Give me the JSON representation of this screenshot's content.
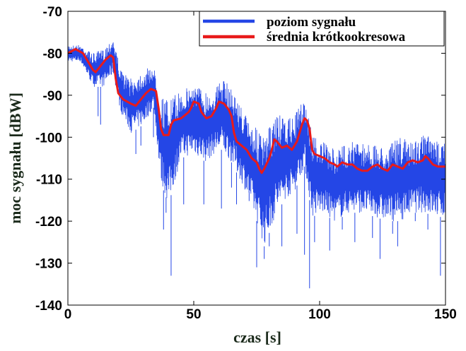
{
  "chart_data": {
    "type": "line",
    "title": "",
    "xlabel": "czas  [s]",
    "ylabel": "moc sygnału [dBW]",
    "xlim": [
      0,
      150
    ],
    "ylim": [
      -140,
      -70
    ],
    "xticks": [
      0,
      50,
      100,
      150
    ],
    "yticks": [
      -70,
      -80,
      -90,
      -100,
      -110,
      -120,
      -130,
      -140
    ],
    "grid": false,
    "legend_position": "top-right",
    "colors": {
      "signal": "#2446e6",
      "average": "#e81a1a"
    },
    "series": [
      {
        "name": "poziom sygnału",
        "band_upper": [
          [
            0,
            -78
          ],
          [
            5,
            -78
          ],
          [
            10,
            -80
          ],
          [
            14,
            -79
          ],
          [
            18,
            -76
          ],
          [
            21,
            -84
          ],
          [
            25,
            -86
          ],
          [
            30,
            -84
          ],
          [
            34,
            -83
          ],
          [
            37,
            -90
          ],
          [
            40,
            -91
          ],
          [
            45,
            -89
          ],
          [
            50,
            -87
          ],
          [
            55,
            -89
          ],
          [
            58,
            -89
          ],
          [
            61,
            -86
          ],
          [
            65,
            -88
          ],
          [
            70,
            -94
          ],
          [
            75,
            -98
          ],
          [
            78,
            -100
          ],
          [
            83,
            -94
          ],
          [
            86,
            -96
          ],
          [
            90,
            -95
          ],
          [
            94,
            -90
          ],
          [
            97,
            -99
          ],
          [
            101,
            -101
          ],
          [
            106,
            -103
          ],
          [
            112,
            -101
          ],
          [
            117,
            -101
          ],
          [
            122,
            -102
          ],
          [
            127,
            -102
          ],
          [
            132,
            -100
          ],
          [
            137,
            -101
          ],
          [
            142,
            -99
          ],
          [
            146,
            -101
          ],
          [
            150,
            -100
          ]
        ],
        "band_lower": [
          [
            0,
            -82
          ],
          [
            5,
            -82
          ],
          [
            10,
            -88
          ],
          [
            14,
            -88
          ],
          [
            18,
            -85
          ],
          [
            21,
            -94
          ],
          [
            25,
            -99
          ],
          [
            30,
            -97
          ],
          [
            34,
            -93
          ],
          [
            37,
            -111
          ],
          [
            40,
            -116
          ],
          [
            45,
            -105
          ],
          [
            50,
            -104
          ],
          [
            55,
            -106
          ],
          [
            58,
            -104
          ],
          [
            61,
            -103
          ],
          [
            65,
            -106
          ],
          [
            70,
            -112
          ],
          [
            75,
            -120
          ],
          [
            78,
            -126
          ],
          [
            83,
            -118
          ],
          [
            86,
            -115
          ],
          [
            90,
            -113
          ],
          [
            94,
            -107
          ],
          [
            97,
            -119
          ],
          [
            101,
            -118
          ],
          [
            106,
            -120
          ],
          [
            112,
            -118
          ],
          [
            117,
            -118
          ],
          [
            122,
            -119
          ],
          [
            127,
            -120
          ],
          [
            132,
            -120
          ],
          [
            137,
            -118
          ],
          [
            142,
            -118
          ],
          [
            146,
            -119
          ],
          [
            150,
            -119
          ]
        ],
        "dips": [
          [
            12,
            -95
          ],
          [
            13,
            -97
          ],
          [
            27,
            -104
          ],
          [
            29,
            -102
          ],
          [
            34,
            -100
          ],
          [
            38,
            -122
          ],
          [
            39,
            -118
          ],
          [
            41,
            -133
          ],
          [
            46,
            -116
          ],
          [
            54,
            -116
          ],
          [
            61,
            -117
          ],
          [
            65,
            -112
          ],
          [
            67,
            -116
          ],
          [
            72,
            -113
          ],
          [
            75,
            -131
          ],
          [
            78,
            -129
          ],
          [
            80,
            -126
          ],
          [
            85,
            -126
          ],
          [
            91,
            -123
          ],
          [
            94,
            -128
          ],
          [
            96,
            -136
          ],
          [
            98,
            -125
          ],
          [
            104,
            -127
          ],
          [
            109,
            -122
          ],
          [
            114,
            -125
          ],
          [
            121,
            -124
          ],
          [
            124,
            -129
          ],
          [
            129,
            -123
          ],
          [
            131,
            -126
          ],
          [
            138,
            -120
          ],
          [
            143,
            -122
          ],
          [
            148,
            -133
          ]
        ]
      },
      {
        "name": "średnia krótkookresowa",
        "points": [
          [
            0,
            -80
          ],
          [
            3,
            -79
          ],
          [
            6,
            -80
          ],
          [
            8,
            -82
          ],
          [
            10,
            -84
          ],
          [
            11,
            -84.5
          ],
          [
            13,
            -83
          ],
          [
            15,
            -81.5
          ],
          [
            17,
            -80.5
          ],
          [
            18,
            -81
          ],
          [
            19,
            -86
          ],
          [
            20,
            -89.5
          ],
          [
            22,
            -91
          ],
          [
            25,
            -92
          ],
          [
            27,
            -92.5
          ],
          [
            29,
            -91
          ],
          [
            31,
            -89.5
          ],
          [
            33,
            -88.5
          ],
          [
            35,
            -89
          ],
          [
            36,
            -93
          ],
          [
            37,
            -98
          ],
          [
            38,
            -99.5
          ],
          [
            40,
            -99.5
          ],
          [
            41,
            -97
          ],
          [
            42,
            -96
          ],
          [
            45,
            -95.5
          ],
          [
            48,
            -94
          ],
          [
            49,
            -93
          ],
          [
            50,
            -91.5
          ],
          [
            52,
            -92
          ],
          [
            53,
            -94
          ],
          [
            55,
            -95.5
          ],
          [
            57,
            -95
          ],
          [
            59,
            -93
          ],
          [
            60,
            -91.5
          ],
          [
            62,
            -92
          ],
          [
            64,
            -93.5
          ],
          [
            65,
            -95
          ],
          [
            66,
            -99
          ],
          [
            67,
            -101
          ],
          [
            69,
            -102
          ],
          [
            71,
            -103
          ],
          [
            73,
            -105
          ],
          [
            75,
            -106
          ],
          [
            76,
            -107.5
          ],
          [
            77,
            -108.5
          ],
          [
            78,
            -107.5
          ],
          [
            80,
            -105
          ],
          [
            81,
            -103
          ],
          [
            82,
            -100.5
          ],
          [
            83,
            -101
          ],
          [
            85,
            -102.5
          ],
          [
            87,
            -102
          ],
          [
            89,
            -103
          ],
          [
            91,
            -101
          ],
          [
            93,
            -97
          ],
          [
            94,
            -95.5
          ],
          [
            95,
            -96
          ],
          [
            96,
            -98
          ],
          [
            97,
            -103
          ],
          [
            98,
            -104
          ],
          [
            100,
            -104.5
          ],
          [
            102,
            -105
          ],
          [
            104,
            -106
          ],
          [
            106,
            -106.5
          ],
          [
            107,
            -107
          ],
          [
            109,
            -106
          ],
          [
            111,
            -106.5
          ],
          [
            113,
            -106.5
          ],
          [
            115,
            -107.5
          ],
          [
            117,
            -108
          ],
          [
            119,
            -108
          ],
          [
            121,
            -107
          ],
          [
            123,
            -106.5
          ],
          [
            125,
            -107.5
          ],
          [
            127,
            -108
          ],
          [
            129,
            -106.5
          ],
          [
            131,
            -107
          ],
          [
            133,
            -107.5
          ],
          [
            135,
            -106
          ],
          [
            137,
            -105.5
          ],
          [
            139,
            -106
          ],
          [
            141,
            -105.5
          ],
          [
            142,
            -104.5
          ],
          [
            143,
            -105
          ],
          [
            145,
            -106.5
          ],
          [
            147,
            -107
          ],
          [
            150,
            -107
          ]
        ]
      }
    ]
  }
}
